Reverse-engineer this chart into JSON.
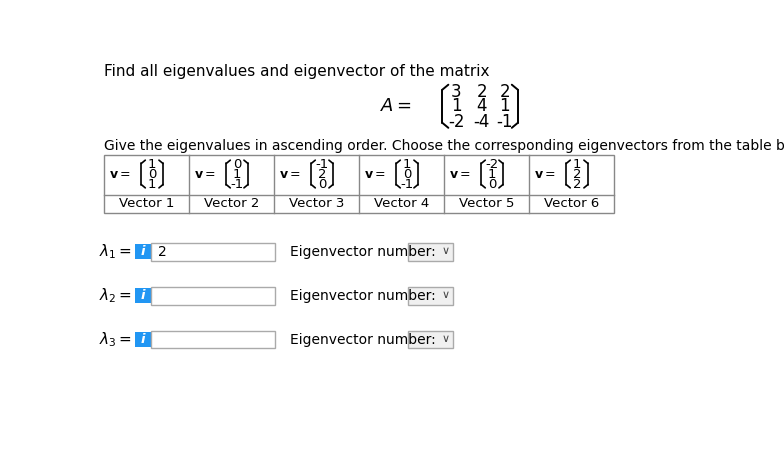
{
  "title": "Find all eigenvalues and eigenvector of the matrix",
  "matrix_rows": [
    [
      "3",
      "2",
      "2"
    ],
    [
      "1",
      "4",
      "1"
    ],
    [
      "-2",
      "-4",
      "-1"
    ]
  ],
  "subtitle": "Give the eigenvalues in ascending order. Choose the corresponding eigenvectors from the table below:",
  "vectors": [
    {
      "label": "Vector 1",
      "components": [
        "1",
        "0",
        "1"
      ]
    },
    {
      "label": "Vector 2",
      "components": [
        "0",
        "1",
        "-1"
      ]
    },
    {
      "label": "Vector 3",
      "components": [
        "-1",
        "2",
        "0"
      ]
    },
    {
      "label": "Vector 4",
      "components": [
        "1",
        "0",
        "-1"
      ]
    },
    {
      "label": "Vector 5",
      "components": [
        "-2",
        "1",
        "0"
      ]
    },
    {
      "label": "Vector 6",
      "components": [
        "1",
        "2",
        "2"
      ]
    }
  ],
  "eigenvalue_filled": [
    "2",
    "",
    ""
  ],
  "eigenvector_label": "Eigenvector number:",
  "blue_color": "#2196F3",
  "bg_color": "#ffffff",
  "font_size_title": 11,
  "font_size_body": 10
}
